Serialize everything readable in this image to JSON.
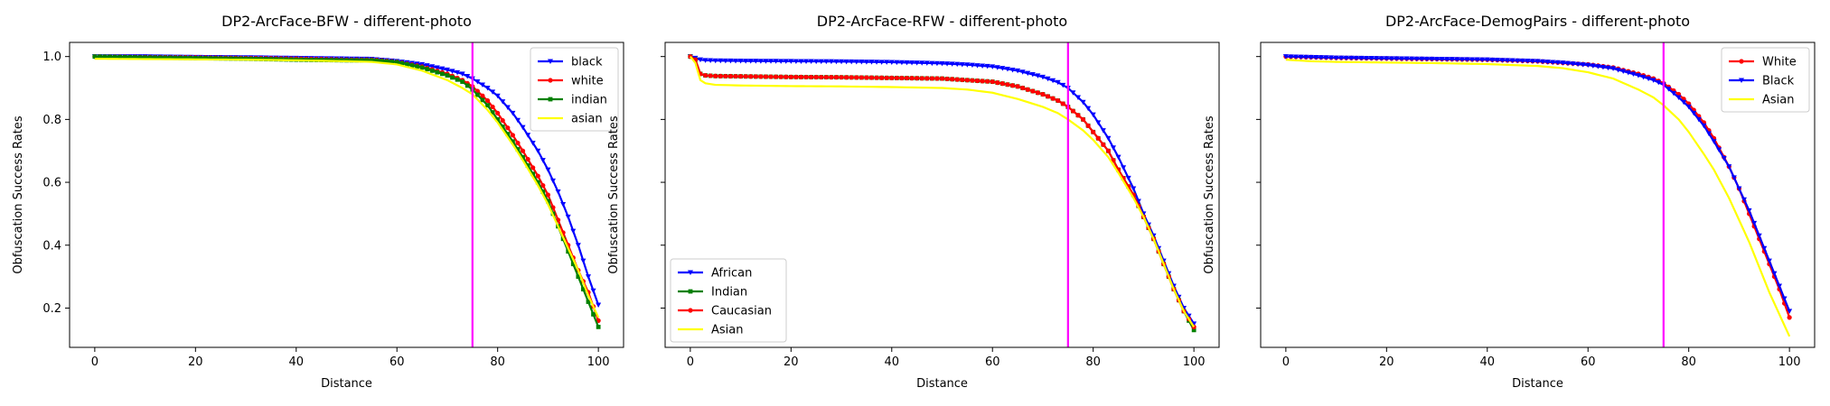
{
  "chart_data": [
    {
      "type": "line",
      "title": "DP2-ArcFace-BFW - different-photo",
      "xlabel": "Distance",
      "ylabel": "Obfuscation Success Rates",
      "xlim": [
        -5,
        105
      ],
      "ylim": [
        0.075,
        1.045
      ],
      "xticks": [
        0,
        20,
        40,
        60,
        80,
        100
      ],
      "yticks": [
        0.2,
        0.4,
        0.6,
        0.8,
        1.0
      ],
      "ytick_labels": [
        "0.2",
        "0.4",
        "0.6",
        "0.8",
        "1.0"
      ],
      "show_ytick_labels": true,
      "vline": {
        "x": 75,
        "color": "#ff00ff"
      },
      "legend_position": "top-right",
      "grid": false,
      "series": [
        {
          "name": "black",
          "color": "#0000ff",
          "marker": "triangle-down",
          "x": [
            0,
            10,
            20,
            30,
            40,
            50,
            55,
            60,
            65,
            70,
            73,
            75,
            78,
            80,
            83,
            85,
            88,
            90,
            92,
            94,
            96,
            98,
            100
          ],
          "y": [
            1.0,
            1.0,
            0.998,
            0.997,
            0.995,
            0.993,
            0.992,
            0.985,
            0.975,
            0.958,
            0.945,
            0.93,
            0.9,
            0.875,
            0.82,
            0.775,
            0.7,
            0.64,
            0.57,
            0.49,
            0.4,
            0.3,
            0.21
          ]
        },
        {
          "name": "white",
          "color": "#ff0000",
          "marker": "circle",
          "x": [
            0,
            10,
            20,
            30,
            40,
            50,
            55,
            60,
            65,
            70,
            73,
            75,
            78,
            80,
            83,
            85,
            88,
            90,
            92,
            94,
            96,
            98,
            100
          ],
          "y": [
            1.0,
            0.998,
            0.997,
            0.995,
            0.993,
            0.99,
            0.99,
            0.983,
            0.968,
            0.945,
            0.925,
            0.905,
            0.86,
            0.82,
            0.75,
            0.7,
            0.62,
            0.56,
            0.48,
            0.4,
            0.32,
            0.25,
            0.16
          ]
        },
        {
          "name": "indian",
          "color": "#008000",
          "marker": "square",
          "x": [
            0,
            10,
            20,
            30,
            40,
            50,
            55,
            60,
            65,
            70,
            73,
            75,
            78,
            80,
            83,
            85,
            88,
            90,
            92,
            94,
            96,
            98,
            100
          ],
          "y": [
            1.0,
            0.997,
            0.995,
            0.993,
            0.99,
            0.988,
            0.988,
            0.982,
            0.965,
            0.94,
            0.92,
            0.895,
            0.845,
            0.8,
            0.73,
            0.68,
            0.6,
            0.54,
            0.46,
            0.38,
            0.3,
            0.22,
            0.14
          ]
        },
        {
          "name": "asian",
          "color": "#ffff00",
          "marker": "none",
          "x": [
            0,
            10,
            20,
            30,
            40,
            50,
            55,
            60,
            65,
            70,
            73,
            75,
            78,
            80,
            83,
            85,
            88,
            90,
            92,
            94,
            96,
            98,
            100
          ],
          "y": [
            0.993,
            0.992,
            0.991,
            0.99,
            0.988,
            0.985,
            0.983,
            0.975,
            0.955,
            0.925,
            0.9,
            0.88,
            0.83,
            0.79,
            0.72,
            0.67,
            0.59,
            0.53,
            0.46,
            0.39,
            0.32,
            0.24,
            0.17
          ]
        }
      ]
    },
    {
      "type": "line",
      "title": "DP2-ArcFace-RFW - different-photo",
      "xlabel": "Distance",
      "ylabel": "Obfuscation Success Rates",
      "xlim": [
        -5,
        105
      ],
      "ylim": [
        0.075,
        1.045
      ],
      "xticks": [
        0,
        20,
        40,
        60,
        80,
        100
      ],
      "yticks": [
        0.2,
        0.4,
        0.6,
        0.8,
        1.0
      ],
      "ytick_labels": [
        "0.2",
        "0.4",
        "0.6",
        "0.8",
        "1.0"
      ],
      "show_ytick_labels": false,
      "vline": {
        "x": 75,
        "color": "#ff00ff"
      },
      "legend_position": "bottom-left",
      "grid": false,
      "series": [
        {
          "name": "African",
          "color": "#0000ff",
          "marker": "triangle-down",
          "x": [
            0,
            1,
            2,
            3,
            5,
            10,
            20,
            30,
            40,
            50,
            55,
            60,
            65,
            70,
            73,
            75,
            78,
            80,
            83,
            85,
            88,
            90,
            92,
            94,
            96,
            98,
            100
          ],
          "y": [
            1.0,
            0.995,
            0.99,
            0.988,
            0.987,
            0.986,
            0.985,
            0.984,
            0.982,
            0.978,
            0.974,
            0.968,
            0.955,
            0.935,
            0.918,
            0.9,
            0.855,
            0.815,
            0.74,
            0.68,
            0.58,
            0.5,
            0.43,
            0.35,
            0.27,
            0.2,
            0.15
          ]
        },
        {
          "name": "Indian",
          "color": "#008000",
          "marker": "square",
          "x": [
            0,
            1,
            2,
            3,
            5,
            10,
            20,
            30,
            40,
            50,
            55,
            60,
            65,
            70,
            73,
            75,
            78,
            80,
            83,
            85,
            88,
            90,
            92,
            94,
            96,
            98,
            100
          ],
          "y": [
            1.0,
            0.99,
            0.945,
            0.94,
            0.938,
            0.937,
            0.935,
            0.934,
            0.932,
            0.93,
            0.925,
            0.92,
            0.905,
            0.88,
            0.86,
            0.84,
            0.8,
            0.76,
            0.7,
            0.64,
            0.56,
            0.49,
            0.42,
            0.34,
            0.26,
            0.19,
            0.13
          ]
        },
        {
          "name": "Caucasian",
          "color": "#ff0000",
          "marker": "circle",
          "x": [
            0,
            1,
            2,
            3,
            5,
            10,
            20,
            30,
            40,
            50,
            55,
            60,
            65,
            70,
            73,
            75,
            78,
            80,
            83,
            85,
            88,
            90,
            92,
            94,
            96,
            98,
            100
          ],
          "y": [
            1.0,
            0.99,
            0.945,
            0.94,
            0.938,
            0.937,
            0.935,
            0.934,
            0.932,
            0.93,
            0.925,
            0.92,
            0.905,
            0.88,
            0.86,
            0.84,
            0.8,
            0.76,
            0.7,
            0.64,
            0.56,
            0.49,
            0.42,
            0.34,
            0.26,
            0.19,
            0.14
          ]
        },
        {
          "name": "Asian",
          "color": "#ffff00",
          "marker": "none",
          "x": [
            0,
            1,
            2,
            3,
            5,
            10,
            20,
            30,
            40,
            50,
            55,
            60,
            65,
            70,
            73,
            75,
            78,
            80,
            83,
            85,
            88,
            90,
            92,
            94,
            96,
            98,
            100
          ],
          "y": [
            1.0,
            0.98,
            0.925,
            0.915,
            0.91,
            0.908,
            0.906,
            0.905,
            0.903,
            0.9,
            0.895,
            0.885,
            0.865,
            0.84,
            0.82,
            0.8,
            0.765,
            0.735,
            0.68,
            0.63,
            0.55,
            0.49,
            0.42,
            0.34,
            0.26,
            0.19,
            0.14
          ]
        }
      ]
    },
    {
      "type": "line",
      "title": "DP2-ArcFace-DemogPairs - different-photo",
      "xlabel": "Distance",
      "ylabel": "Obfuscation Success Rates",
      "xlim": [
        -5,
        105
      ],
      "ylim": [
        0.075,
        1.045
      ],
      "xticks": [
        0,
        20,
        40,
        60,
        80,
        100
      ],
      "yticks": [
        0.2,
        0.4,
        0.6,
        0.8,
        1.0
      ],
      "ytick_labels": [
        "0.2",
        "0.4",
        "0.6",
        "0.8",
        "1.0"
      ],
      "show_ytick_labels": false,
      "vline": {
        "x": 75,
        "color": "#ff00ff"
      },
      "legend_position": "top-right",
      "grid": false,
      "series": [
        {
          "name": "White",
          "color": "#ff0000",
          "marker": "circle",
          "x": [
            0,
            5,
            10,
            20,
            30,
            40,
            50,
            55,
            60,
            65,
            70,
            73,
            75,
            78,
            80,
            83,
            85,
            88,
            90,
            92,
            94,
            96,
            98,
            100
          ],
          "y": [
            1.0,
            0.998,
            0.996,
            0.994,
            0.992,
            0.99,
            0.985,
            0.98,
            0.975,
            0.965,
            0.945,
            0.93,
            0.915,
            0.88,
            0.85,
            0.79,
            0.74,
            0.65,
            0.58,
            0.5,
            0.42,
            0.34,
            0.26,
            0.17
          ]
        },
        {
          "name": "Black",
          "color": "#0000ff",
          "marker": "triangle-down",
          "x": [
            0,
            5,
            10,
            20,
            30,
            40,
            50,
            55,
            60,
            65,
            70,
            73,
            75,
            78,
            80,
            83,
            85,
            88,
            90,
            92,
            94,
            96,
            98,
            100
          ],
          "y": [
            1.0,
            0.998,
            0.996,
            0.994,
            0.992,
            0.99,
            0.985,
            0.98,
            0.973,
            0.962,
            0.94,
            0.925,
            0.91,
            0.87,
            0.84,
            0.78,
            0.73,
            0.65,
            0.58,
            0.51,
            0.43,
            0.35,
            0.27,
            0.19
          ]
        },
        {
          "name": "Asian",
          "color": "#ffff00",
          "marker": "none",
          "x": [
            0,
            5,
            10,
            20,
            30,
            40,
            50,
            55,
            60,
            65,
            70,
            73,
            75,
            78,
            80,
            83,
            85,
            88,
            90,
            92,
            94,
            96,
            98,
            100
          ],
          "y": [
            0.99,
            0.985,
            0.983,
            0.981,
            0.979,
            0.976,
            0.97,
            0.963,
            0.95,
            0.93,
            0.895,
            0.87,
            0.845,
            0.8,
            0.76,
            0.69,
            0.64,
            0.55,
            0.48,
            0.41,
            0.33,
            0.25,
            0.18,
            0.11
          ]
        }
      ]
    }
  ]
}
